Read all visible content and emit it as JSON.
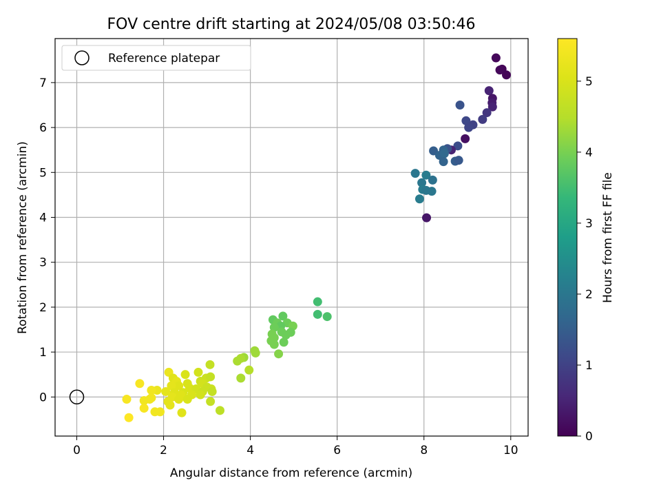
{
  "chart_data": {
    "type": "scatter",
    "title": "FOV centre drift starting at 2024/05/08 03:50:46",
    "xlabel": "Angular distance from reference (arcmin)",
    "ylabel": "Rotation from reference (arcmin)",
    "xlim": [
      -0.5,
      10.4
    ],
    "ylim": [
      -0.87,
      7.98
    ],
    "xticks": [
      "0",
      "2",
      "4",
      "6",
      "8",
      "10"
    ],
    "yticks": [
      "0",
      "1",
      "2",
      "3",
      "4",
      "5",
      "6",
      "7"
    ],
    "grid": true,
    "legend": {
      "placement": "top-left",
      "entries": [
        "Reference platepar"
      ]
    },
    "reference_point": {
      "x": 0,
      "y": 0,
      "label": "Reference platepar"
    },
    "colorbar": {
      "label": "Hours from first FF file",
      "colormap": "viridis",
      "range": [
        0,
        5.6
      ],
      "ticks": [
        "0",
        "1",
        "2",
        "3",
        "4",
        "5"
      ]
    },
    "points": [
      [
        9.66,
        7.55,
        0.1
      ],
      [
        9.8,
        7.3,
        0.05
      ],
      [
        9.75,
        7.28,
        0.1
      ],
      [
        9.9,
        7.17,
        0.05
      ],
      [
        9.5,
        6.82,
        0.5
      ],
      [
        9.58,
        6.65,
        0.3
      ],
      [
        9.57,
        6.55,
        0.4
      ],
      [
        9.58,
        6.46,
        0.5
      ],
      [
        9.45,
        6.33,
        0.8
      ],
      [
        9.35,
        6.18,
        0.9
      ],
      [
        8.83,
        6.5,
        1.3
      ],
      [
        8.97,
        6.15,
        1.1
      ],
      [
        9.13,
        6.06,
        1.0
      ],
      [
        9.03,
        6.0,
        1.05
      ],
      [
        8.95,
        5.75,
        0.2
      ],
      [
        8.78,
        5.59,
        1.2
      ],
      [
        8.63,
        5.5,
        0.5
      ],
      [
        8.54,
        5.53,
        1.3
      ],
      [
        8.22,
        5.48,
        1.5
      ],
      [
        8.45,
        5.5,
        1.6
      ],
      [
        8.36,
        5.38,
        1.6
      ],
      [
        8.47,
        5.42,
        1.7
      ],
      [
        8.45,
        5.24,
        1.6
      ],
      [
        8.72,
        5.25,
        1.5
      ],
      [
        8.8,
        5.27,
        1.4
      ],
      [
        7.8,
        4.98,
        2.0
      ],
      [
        8.05,
        4.94,
        2.1
      ],
      [
        8.2,
        4.83,
        1.9
      ],
      [
        7.95,
        4.77,
        2.0
      ],
      [
        7.97,
        4.62,
        2.1
      ],
      [
        8.05,
        4.6,
        2.0
      ],
      [
        8.18,
        4.58,
        2.0
      ],
      [
        7.9,
        4.41,
        2.1
      ],
      [
        8.06,
        3.99,
        0.3
      ],
      [
        5.55,
        2.12,
        3.5
      ],
      [
        5.55,
        1.84,
        3.5
      ],
      [
        5.77,
        1.79,
        3.6
      ],
      [
        4.75,
        1.8,
        3.8
      ],
      [
        4.52,
        1.72,
        3.8
      ],
      [
        4.62,
        1.65,
        3.9
      ],
      [
        4.85,
        1.65,
        3.9
      ],
      [
        4.7,
        1.58,
        3.8
      ],
      [
        4.98,
        1.58,
        4.0
      ],
      [
        4.55,
        1.55,
        3.9
      ],
      [
        4.72,
        1.45,
        3.9
      ],
      [
        4.93,
        1.44,
        3.9
      ],
      [
        4.5,
        1.4,
        4.0
      ],
      [
        4.82,
        1.38,
        3.9
      ],
      [
        4.55,
        1.32,
        4.0
      ],
      [
        4.48,
        1.25,
        4.0
      ],
      [
        4.77,
        1.22,
        3.9
      ],
      [
        4.55,
        1.17,
        4.0
      ],
      [
        4.65,
        0.96,
        4.1
      ],
      [
        4.1,
        1.03,
        4.3
      ],
      [
        4.12,
        0.98,
        4.3
      ],
      [
        3.85,
        0.88,
        4.3
      ],
      [
        3.78,
        0.86,
        4.4
      ],
      [
        3.7,
        0.8,
        4.4
      ],
      [
        3.78,
        0.42,
        4.4
      ],
      [
        3.97,
        0.6,
        4.5
      ],
      [
        2.12,
        0.55,
        5.3
      ],
      [
        2.22,
        0.42,
        5.1
      ],
      [
        2.3,
        0.35,
        5.2
      ],
      [
        2.5,
        0.5,
        5.0
      ],
      [
        2.8,
        0.55,
        4.9
      ],
      [
        3.07,
        0.72,
        4.7
      ],
      [
        2.98,
        0.42,
        4.8
      ],
      [
        3.08,
        0.45,
        4.7
      ],
      [
        2.85,
        0.35,
        4.8
      ],
      [
        2.9,
        0.3,
        4.9
      ],
      [
        2.55,
        0.3,
        5.0
      ],
      [
        2.35,
        0.25,
        5.1
      ],
      [
        2.18,
        0.25,
        5.2
      ],
      [
        2.6,
        0.2,
        5.0
      ],
      [
        2.75,
        0.18,
        4.9
      ],
      [
        3.0,
        0.22,
        4.8
      ],
      [
        3.1,
        0.18,
        4.8
      ],
      [
        3.12,
        0.12,
        4.7
      ],
      [
        2.9,
        0.12,
        4.8
      ],
      [
        2.45,
        0.1,
        5.0
      ],
      [
        2.25,
        0.1,
        5.1
      ],
      [
        2.05,
        0.12,
        5.2
      ],
      [
        1.85,
        0.15,
        5.3
      ],
      [
        1.72,
        0.15,
        5.4
      ],
      [
        2.4,
        0.05,
        5.1
      ],
      [
        2.65,
        0.05,
        5.0
      ],
      [
        2.85,
        0.05,
        4.9
      ],
      [
        2.2,
        0.0,
        5.2
      ],
      [
        2.35,
        -0.05,
        5.1
      ],
      [
        2.55,
        -0.05,
        5.0
      ],
      [
        2.1,
        -0.1,
        5.2
      ],
      [
        3.08,
        -0.1,
        4.7
      ],
      [
        2.15,
        -0.18,
        5.2
      ],
      [
        1.45,
        0.3,
        5.5
      ],
      [
        1.15,
        -0.05,
        5.5
      ],
      [
        1.55,
        -0.08,
        5.4
      ],
      [
        1.68,
        -0.05,
        5.4
      ],
      [
        1.72,
        -0.02,
        5.4
      ],
      [
        1.55,
        -0.25,
        5.5
      ],
      [
        1.8,
        -0.33,
        5.4
      ],
      [
        1.92,
        -0.33,
        5.4
      ],
      [
        1.2,
        -0.46,
        5.6
      ],
      [
        2.42,
        -0.35,
        5.1
      ],
      [
        3.3,
        -0.3,
        4.6
      ]
    ]
  }
}
